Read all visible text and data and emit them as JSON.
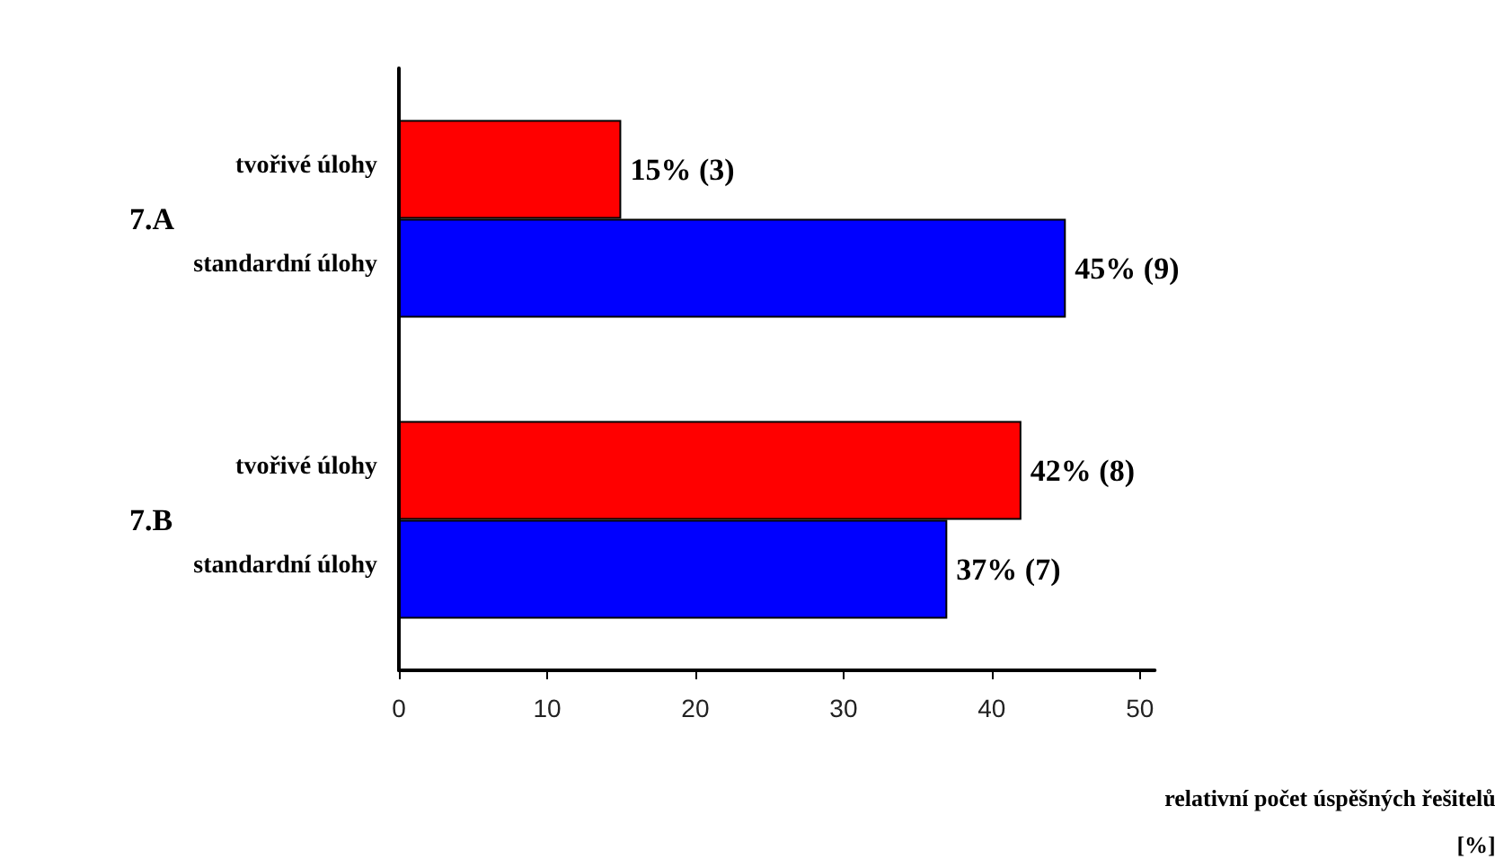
{
  "chart_data": {
    "type": "bar",
    "orientation": "horizontal",
    "xlabel": "relativní počet úspěšných řešitelů\n[%]",
    "categories": [
      "7.A",
      "7.B"
    ],
    "series": [
      {
        "name": "tvořivé úlohy",
        "color": "#ff0000",
        "values": [
          15,
          42
        ],
        "value_labels": [
          "15% (3)",
          "42% (8)"
        ]
      },
      {
        "name": "standardní úlohy",
        "color": "#0000ff",
        "values": [
          45,
          37
        ],
        "value_labels": [
          "45% (9)",
          "37% (7)"
        ]
      }
    ],
    "xlim": [
      0,
      51
    ],
    "xticks": [
      0,
      10,
      20,
      30,
      40,
      50
    ],
    "grid": false,
    "legend": false
  }
}
